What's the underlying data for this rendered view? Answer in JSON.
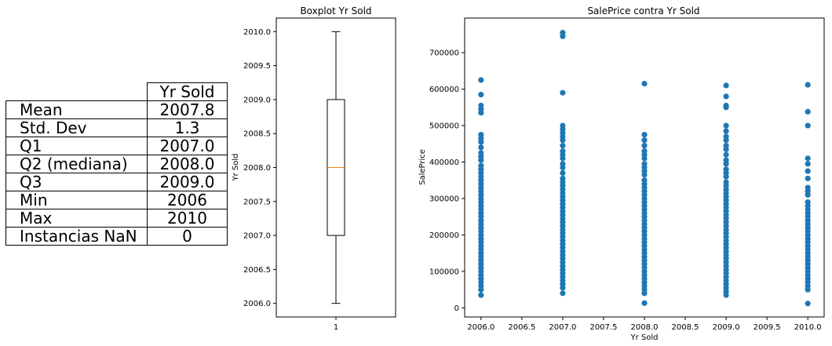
{
  "stats_table": {
    "column_header": "Yr Sold",
    "rows": [
      {
        "label": "Mean",
        "value": "2007.8"
      },
      {
        "label": "Std. Dev",
        "value": "1.3"
      },
      {
        "label": "Q1",
        "value": "2007.0"
      },
      {
        "label": "Q2 (mediana)",
        "value": "2008.0"
      },
      {
        "label": "Q3",
        "value": "2009.0"
      },
      {
        "label": "Min",
        "value": "2006"
      },
      {
        "label": "Max",
        "value": "2010"
      },
      {
        "label": "Instancias NaN",
        "value": "0"
      }
    ]
  },
  "chart_data": [
    {
      "type": "box",
      "title": "Boxplot Yr Sold",
      "ylabel": "Yr Sold",
      "categories": [
        "1"
      ],
      "ylim": [
        2005.8,
        2010.2
      ],
      "yticks": [
        2006.0,
        2006.5,
        2007.0,
        2007.5,
        2008.0,
        2008.5,
        2009.0,
        2009.5,
        2010.0
      ],
      "ytick_labels": [
        "2006.0",
        "2006.5",
        "2007.0",
        "2007.5",
        "2008.0",
        "2008.5",
        "2009.0",
        "2009.5",
        "2010.0"
      ],
      "box": {
        "whisker_low": 2006.0,
        "q1": 2007.0,
        "median": 2008.0,
        "q3": 2009.0,
        "whisker_high": 2010.0
      },
      "colors": {
        "median": "#ff7f0e",
        "box": "#000000"
      }
    },
    {
      "type": "scatter",
      "title": "SalePrice contra Yr Sold",
      "xlabel": "Yr Sold",
      "ylabel": "SalePrice",
      "xlim": [
        2005.8,
        2010.2
      ],
      "ylim": [
        -25000,
        795000
      ],
      "xticks": [
        2006.0,
        2006.5,
        2007.0,
        2007.5,
        2008.0,
        2008.5,
        2009.0,
        2009.5,
        2010.0
      ],
      "xtick_labels": [
        "2006.0",
        "2006.5",
        "2007.0",
        "2007.5",
        "2008.0",
        "2008.5",
        "2009.0",
        "2009.5",
        "2010.0"
      ],
      "yticks": [
        0,
        100000,
        200000,
        300000,
        400000,
        500000,
        600000,
        700000
      ],
      "ytick_labels": [
        "0",
        "100000",
        "200000",
        "300000",
        "400000",
        "500000",
        "600000",
        "700000"
      ],
      "color": "#1f77b4",
      "series": [
        {
          "x": 2006,
          "y": [
            35000,
            50000,
            60000,
            70000,
            80000,
            90000,
            100000,
            110000,
            120000,
            130000,
            140000,
            150000,
            160000,
            170000,
            180000,
            190000,
            200000,
            210000,
            220000,
            230000,
            240000,
            250000,
            260000,
            270000,
            280000,
            290000,
            300000,
            310000,
            320000,
            330000,
            340000,
            350000,
            360000,
            370000,
            380000,
            390000,
            405000,
            415000,
            425000,
            440000,
            455000,
            465000,
            475000,
            535000,
            545000,
            555000,
            585000,
            625000
          ]
        },
        {
          "x": 2007,
          "y": [
            40000,
            55000,
            65000,
            75000,
            85000,
            95000,
            105000,
            115000,
            125000,
            135000,
            145000,
            155000,
            165000,
            175000,
            185000,
            195000,
            205000,
            215000,
            225000,
            235000,
            245000,
            255000,
            265000,
            275000,
            285000,
            295000,
            305000,
            315000,
            325000,
            335000,
            345000,
            355000,
            370000,
            385000,
            395000,
            410000,
            420000,
            430000,
            445000,
            460000,
            470000,
            480000,
            490000,
            500000,
            590000,
            745000,
            755000
          ]
        },
        {
          "x": 2008,
          "y": [
            13000,
            40000,
            50000,
            60000,
            70000,
            80000,
            90000,
            100000,
            110000,
            120000,
            130000,
            140000,
            150000,
            160000,
            170000,
            180000,
            190000,
            200000,
            210000,
            220000,
            230000,
            240000,
            250000,
            260000,
            270000,
            280000,
            290000,
            300000,
            310000,
            320000,
            330000,
            340000,
            350000,
            365000,
            375000,
            385000,
            395000,
            410000,
            420000,
            430000,
            445000,
            460000,
            475000,
            615000
          ]
        },
        {
          "x": 2009,
          "y": [
            35000,
            45000,
            55000,
            65000,
            75000,
            85000,
            95000,
            105000,
            115000,
            125000,
            135000,
            145000,
            155000,
            165000,
            175000,
            185000,
            195000,
            205000,
            215000,
            225000,
            235000,
            245000,
            255000,
            265000,
            275000,
            285000,
            295000,
            305000,
            315000,
            325000,
            335000,
            345000,
            360000,
            370000,
            380000,
            395000,
            405000,
            420000,
            435000,
            445000,
            460000,
            470000,
            485000,
            500000,
            550000,
            555000,
            580000,
            610000
          ]
        },
        {
          "x": 2010,
          "y": [
            12000,
            50000,
            60000,
            70000,
            80000,
            90000,
            100000,
            110000,
            120000,
            130000,
            140000,
            150000,
            160000,
            170000,
            180000,
            190000,
            200000,
            210000,
            220000,
            230000,
            240000,
            250000,
            260000,
            270000,
            280000,
            290000,
            310000,
            320000,
            330000,
            355000,
            375000,
            395000,
            410000,
            500000,
            538000,
            612000
          ]
        }
      ]
    }
  ]
}
